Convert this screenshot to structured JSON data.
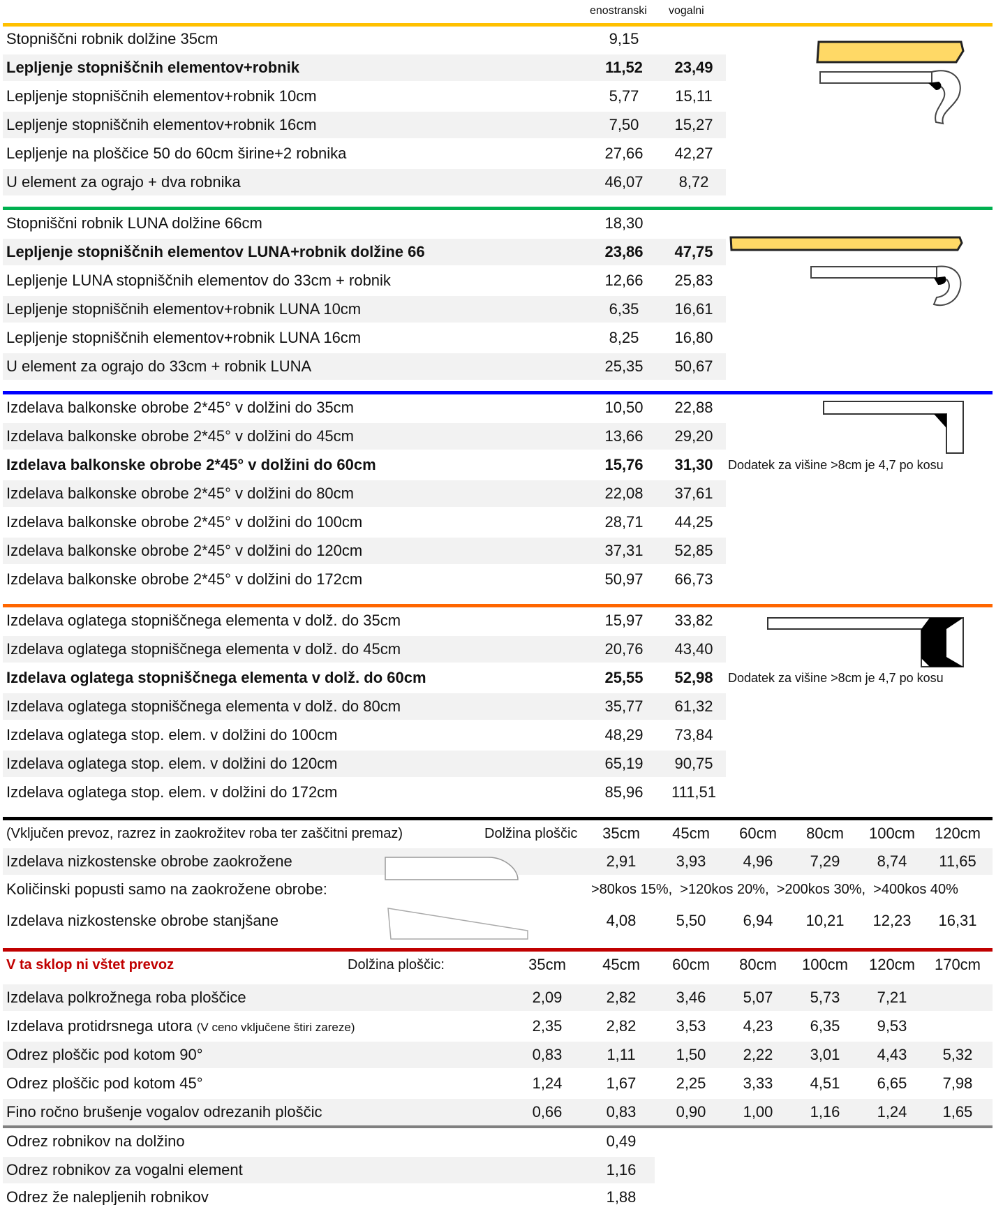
{
  "header": {
    "col1": "enostranski",
    "col2": "vogalni"
  },
  "colors": {
    "yellow": "#ffc000",
    "green": "#00b050",
    "blue": "#0000ff",
    "orange": "#ff6600",
    "black": "#000000",
    "red": "#c00000",
    "gray": "#808080",
    "fill_yellow": "#ffd966"
  },
  "icons": [
    "yellow-robnik-profile-icon",
    "luna-robnik-profile-icon",
    "balcony-edge-profile-icon",
    "stair-element-profile-icon",
    "rounded-edge-icon",
    "tapered-edge-icon"
  ],
  "section1": [
    {
      "label": "Stopniščni robnik dolžine 35cm",
      "a": "9,15",
      "b": ""
    },
    {
      "label": "Lepljenje stopniščnih elementov+robnik",
      "a": "11,52",
      "b": "23,49",
      "bold": true
    },
    {
      "label": "Lepljenje stopniščnih elementov+robnik 10cm",
      "a": "5,77",
      "b": "15,11"
    },
    {
      "label": "Lepljenje stopniščnih elementov+robnik 16cm",
      "a": "7,50",
      "b": "15,27"
    },
    {
      "label": "Lepljenje na ploščice 50 do 60cm širine+2 robnika",
      "a": "27,66",
      "b": "42,27"
    },
    {
      "label": "U element za ograjo + dva robnika",
      "a": "46,07",
      "b": "8,72"
    }
  ],
  "section2": [
    {
      "label": "Stopniščni robnik LUNA dolžine 66cm",
      "a": "18,30",
      "b": ""
    },
    {
      "label": "Lepljenje stopniščnih elementov LUNA+robnik dolžine 66",
      "a": "23,86",
      "b": "47,75",
      "bold": true
    },
    {
      "label": "Lepljenje LUNA stopniščnih elementov do 33cm + robnik",
      "a": "12,66",
      "b": "25,83"
    },
    {
      "label": "Lepljenje stopniščnih elementov+robnik LUNA 10cm",
      "a": "6,35",
      "b": "16,61"
    },
    {
      "label": "Lepljenje stopniščnih elementov+robnik LUNA 16cm",
      "a": "8,25",
      "b": "16,80"
    },
    {
      "label": "U element za ograjo do 33cm + robnik LUNA",
      "a": "25,35",
      "b": "50,67"
    }
  ],
  "section3": [
    {
      "label": "Izdelava balkonske obrobe 2*45° v dolžini do 35cm",
      "a": "10,50",
      "b": "22,88"
    },
    {
      "label": "Izdelava balkonske obrobe 2*45° v dolžini do 45cm",
      "a": "13,66",
      "b": "29,20"
    },
    {
      "label": "Izdelava balkonske obrobe 2*45° v dolžini do 60cm",
      "a": "15,76",
      "b": "31,30",
      "bold": true
    },
    {
      "label": "Izdelava balkonske obrobe 2*45° v dolžini do 80cm",
      "a": "22,08",
      "b": "37,61"
    },
    {
      "label": "Izdelava balkonske obrobe 2*45° v dolžini do 100cm",
      "a": "28,71",
      "b": "44,25"
    },
    {
      "label": "Izdelava balkonske obrobe 2*45° v dolžini do 120cm",
      "a": "37,31",
      "b": "52,85"
    },
    {
      "label": "Izdelava balkonske obrobe 2*45° v dolžini do 172cm",
      "a": "50,97",
      "b": "66,73"
    }
  ],
  "section3_note": "Dodatek za višine >8cm je  4,7 po kosu",
  "section4": [
    {
      "label": "Izdelava oglatega stopniščnega elementa v dolž. do 35cm",
      "a": "15,97",
      "b": "33,82"
    },
    {
      "label": "Izdelava oglatega stopniščnega elementa v dolž. do 45cm",
      "a": "20,76",
      "b": "43,40"
    },
    {
      "label": "Izdelava oglatega stopniščnega elementa v dolž. do 60cm",
      "a": "25,55",
      "b": "52,98",
      "bold": true
    },
    {
      "label": "Izdelava oglatega stopniščnega elementa v dolž. do 80cm",
      "a": "35,77",
      "b": "61,32"
    },
    {
      "label": "Izdelava oglatega stop. elem. v dolžini do 100cm",
      "a": "48,29",
      "b": "73,84"
    },
    {
      "label": "Izdelava oglatega stop. elem. v dolžini do 120cm",
      "a": "65,19",
      "b": "90,75"
    },
    {
      "label": "Izdelava oglatega stop. elem. v dolžini do 172cm",
      "a": "85,96",
      "b": "111,51"
    }
  ],
  "section4_note": "Dodatek za višine >8cm je  4,7 po kosu",
  "section5": {
    "intro": "(Vključen prevoz, razrez in zaokrožitev roba ter zaščitni premaz)",
    "length_label": "Dolžina ploščic",
    "lengths": [
      "35cm",
      "45cm",
      "60cm",
      "80cm",
      "100cm",
      "120cm"
    ],
    "rounded_label": "Izdelava nizkostenske obrobe zaokrožene",
    "rounded_values": [
      "2,91",
      "3,93",
      "4,96",
      "7,29",
      "8,74",
      "11,65"
    ],
    "discount_label": "Količinski popusti samo na zaokrožene obrobe:",
    "discount_text": ">80kos 15%,  >120kos 20%,  >200kos 30%,  >400kos 40%",
    "tapered_label": "Izdelava nizkostenske obrobe stanjšane",
    "tapered_values": [
      "4,08",
      "5,50",
      "6,94",
      "10,21",
      "12,23",
      "16,31"
    ]
  },
  "section6": {
    "title": "V ta sklop ni vštet prevoz",
    "length_label": "Dolžina ploščic:",
    "lengths": [
      "35cm",
      "45cm",
      "60cm",
      "80cm",
      "100cm",
      "120cm",
      "170cm"
    ],
    "rows": [
      {
        "label": "Izdelava polkrožnega roba ploščice",
        "sub": "",
        "values": [
          "2,09",
          "2,82",
          "3,46",
          "5,07",
          "5,73",
          "7,21",
          ""
        ]
      },
      {
        "label": "Izdelava protidrsnega utora ",
        "sub": "(V ceno vključene štiri zareze)",
        "values": [
          "2,35",
          "2,82",
          "3,53",
          "4,23",
          "6,35",
          "9,53",
          ""
        ]
      },
      {
        "label": "Odrez ploščic pod kotom 90°",
        "sub": "",
        "values": [
          "0,83",
          "1,11",
          "1,50",
          "2,22",
          "3,01",
          "4,43",
          "5,32"
        ]
      },
      {
        "label": "Odrez ploščic pod kotom 45°",
        "sub": "",
        "values": [
          "1,24",
          "1,67",
          "2,25",
          "3,33",
          "4,51",
          "6,65",
          "7,98"
        ]
      },
      {
        "label": "Fino ročno brušenje vogalov odrezanih ploščic",
        "sub": "",
        "values": [
          "0,66",
          "0,83",
          "0,90",
          "1,00",
          "1,16",
          "1,24",
          "1,65"
        ]
      }
    ]
  },
  "section7": [
    {
      "label": "Odrez robnikov na dolžino",
      "a": "0,49"
    },
    {
      "label": "Odrez robnikov za vogalni element",
      "a": "1,16"
    },
    {
      "label": "Odrez že nalepljenih robnikov",
      "a": "1,88"
    }
  ]
}
